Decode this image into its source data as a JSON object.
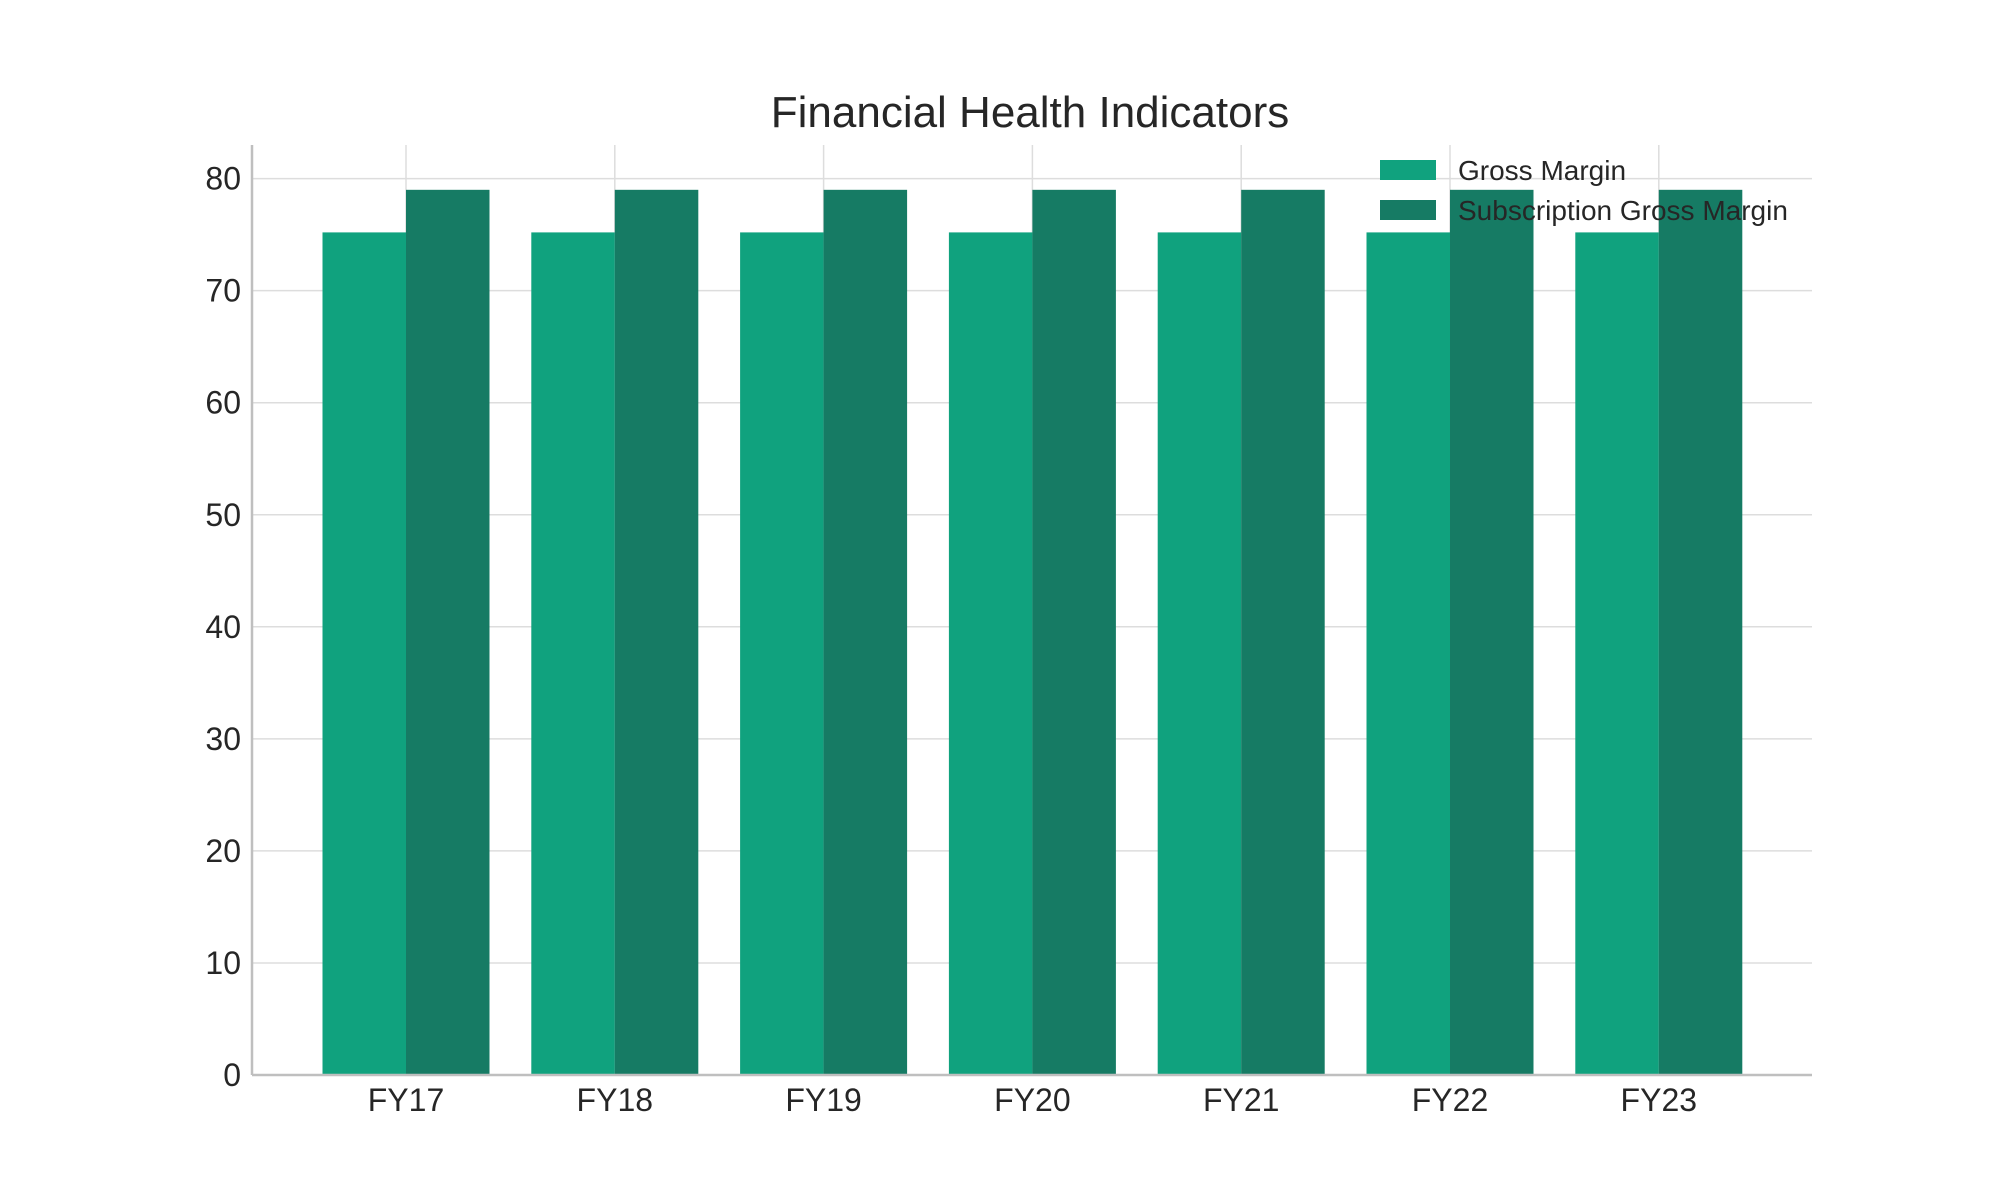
{
  "chart_data": {
    "type": "bar",
    "title": "Financial Health Indicators",
    "xlabel": "",
    "ylabel": "",
    "categories": [
      "FY17",
      "FY18",
      "FY19",
      "FY20",
      "FY21",
      "FY22",
      "FY23"
    ],
    "series": [
      {
        "name": "Gross Margin",
        "color": "#10a27e",
        "values": [
          75.2,
          75.2,
          75.2,
          75.2,
          75.2,
          75.2,
          75.2
        ]
      },
      {
        "name": "Subscription Gross Margin",
        "color": "#167b64",
        "values": [
          79.0,
          79.0,
          79.0,
          79.0,
          79.0,
          79.0,
          79.0
        ]
      }
    ],
    "ylim": [
      0,
      83
    ],
    "yticks": [
      0,
      10,
      20,
      30,
      40,
      50,
      60,
      70,
      80
    ],
    "grid": true,
    "legend": "top-right"
  }
}
